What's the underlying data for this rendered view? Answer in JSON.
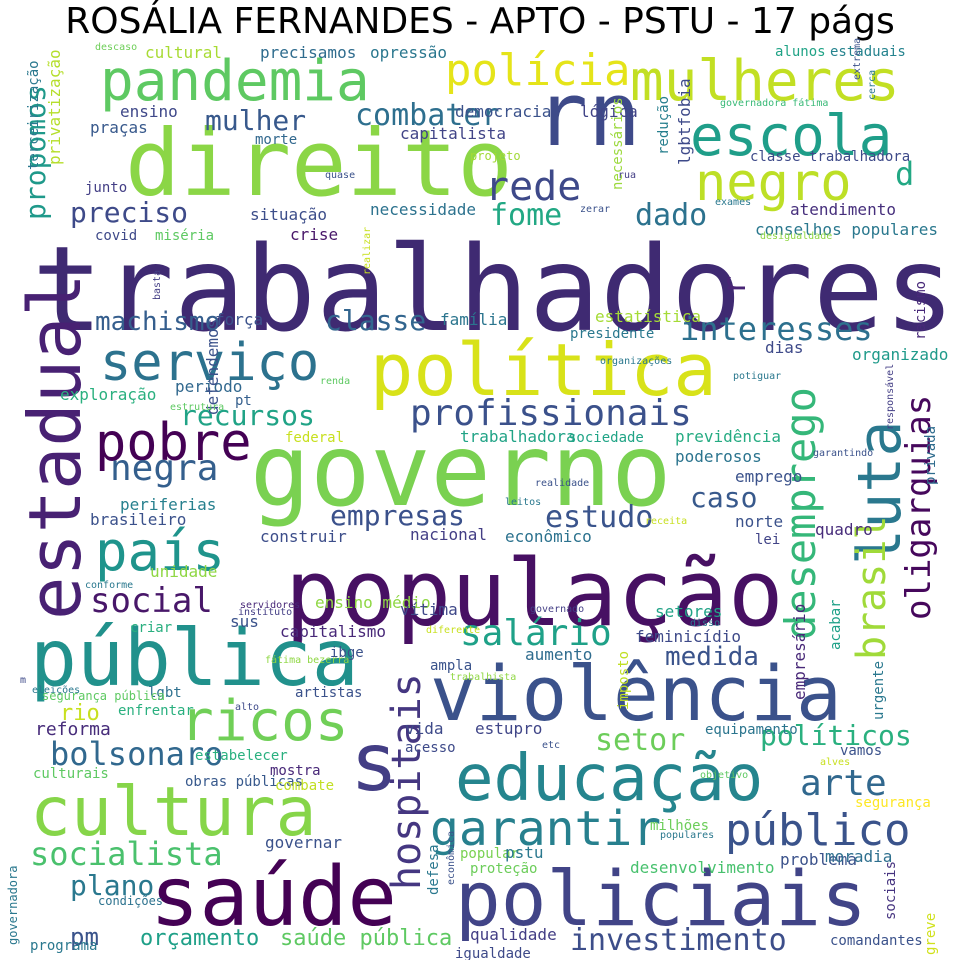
{
  "title": "ROSÁLIA FERNANDES - APTO - PSTU - 17 págs",
  "palette": {
    "dark_purple": "#440154",
    "indigo": "#3b528b",
    "teal": "#21918c",
    "green": "#5ec962",
    "yellow": "#d8e219"
  },
  "words": [
    {
      "text": "trabalhadores",
      "color": "#3f2a72"
    },
    {
      "text": "população",
      "color": "#471063"
    },
    {
      "text": "governo",
      "color": "#7ad151"
    },
    {
      "text": "direito",
      "color": "#8bd646"
    },
    {
      "text": "violência",
      "color": "#3b528b"
    },
    {
      "text": "política",
      "color": "#d8e219"
    },
    {
      "text": "pública",
      "color": "#21918c"
    },
    {
      "text": "saúde",
      "color": "#440154"
    },
    {
      "text": "policiais",
      "color": "#414487"
    },
    {
      "text": "educação",
      "color": "#25858e"
    },
    {
      "text": "cultura",
      "color": "#86d549"
    },
    {
      "text": "estadual",
      "color": "#482173"
    },
    {
      "text": "pandemia",
      "color": "#5ec962"
    },
    {
      "text": "mulheres",
      "color": "#c2df23"
    },
    {
      "text": "rn",
      "color": "#3e4a89"
    },
    {
      "text": "escola",
      "color": "#1f9e89"
    },
    {
      "text": "negro",
      "color": "#bddf26"
    },
    {
      "text": "luta",
      "color": "#2a788e"
    },
    {
      "text": "serviço",
      "color": "#2c728e"
    },
    {
      "text": "pobre",
      "color": "#440154"
    },
    {
      "text": "país",
      "color": "#1f948c"
    },
    {
      "text": "ricos",
      "color": "#70cf57"
    },
    {
      "text": "polícia",
      "color": "#e5e419"
    },
    {
      "text": "rede",
      "color": "#3e4989"
    },
    {
      "text": "s",
      "color": "#433e85"
    },
    {
      "text": "garantir",
      "color": "#27808e"
    },
    {
      "text": "público",
      "color": "#3a538b"
    },
    {
      "text": "profissionais",
      "color": "#3b518b"
    },
    {
      "text": "desemprego",
      "color": "#35b779"
    },
    {
      "text": "brasil",
      "color": "#a0da39"
    },
    {
      "text": "oligarquias",
      "color": "#46085c"
    },
    {
      "text": "hospitais",
      "color": "#453781"
    },
    {
      "text": "negra",
      "color": "#345f8d"
    },
    {
      "text": "social",
      "color": "#481769"
    },
    {
      "text": "interesses",
      "color": "#2d708e"
    },
    {
      "text": "arte",
      "color": "#31688e"
    },
    {
      "text": "socialista",
      "color": "#4ac16d"
    },
    {
      "text": "salário",
      "color": "#1fa188"
    },
    {
      "text": "bolsonaro",
      "color": "#31688e"
    },
    {
      "text": "combater",
      "color": "#2e6f8e"
    },
    {
      "text": "fome",
      "color": "#22a884"
    },
    {
      "text": "dado",
      "color": "#2c728e"
    },
    {
      "text": "mulher",
      "color": "#38598c"
    },
    {
      "text": "machismo",
      "color": "#355e8d"
    },
    {
      "text": "classe",
      "color": "#32658e"
    },
    {
      "text": "recursos",
      "color": "#20a386"
    },
    {
      "text": "empresas",
      "color": "#3b518b"
    },
    {
      "text": "estudo",
      "color": "#3a548c"
    },
    {
      "text": "caso",
      "color": "#38598c"
    },
    {
      "text": "medida",
      "color": "#3a538b"
    },
    {
      "text": "políticos",
      "color": "#2ab07f"
    },
    {
      "text": "setor",
      "color": "#6ccd5a"
    },
    {
      "text": "preciso",
      "color": "#3e4a89"
    },
    {
      "text": "d",
      "color": "#22a884"
    },
    {
      "text": "r",
      "color": "#482475"
    },
    {
      "text": "propomos",
      "color": "#1f998a"
    },
    {
      "text": "plano",
      "color": "#2a788e"
    },
    {
      "text": "pm",
      "color": "#3a538b"
    },
    {
      "text": "orçamento",
      "color": "#1fa088"
    },
    {
      "text": "investimento",
      "color": "#3d4e8a"
    },
    {
      "text": "saúde pública",
      "color": "#5ec962"
    },
    {
      "text": "rio",
      "color": "#c8e020"
    },
    {
      "text": "reforma",
      "color": "#472c7a"
    },
    {
      "text": "democracia",
      "color": "#3b528b"
    },
    {
      "text": "lógica",
      "color": "#414487"
    },
    {
      "text": "capitalista",
      "color": "#414487"
    },
    {
      "text": "cultural",
      "color": "#a8db34"
    },
    {
      "text": "precisamos",
      "color": "#2f6c8e"
    },
    {
      "text": "opressão",
      "color": "#2a778e"
    },
    {
      "text": "alunos",
      "color": "#20a386"
    },
    {
      "text": "estaduais",
      "color": "#25838e"
    },
    {
      "text": "descaso",
      "color": "#6ece58"
    },
    {
      "text": "ensino",
      "color": "#3f4889"
    },
    {
      "text": "praças",
      "color": "#38598c"
    },
    {
      "text": "morte",
      "color": "#31688e"
    },
    {
      "text": "terceirização",
      "color": "#2a788e"
    },
    {
      "text": "privatização",
      "color": "#b5de2b"
    },
    {
      "text": "junto",
      "color": "#433e85"
    },
    {
      "text": "covid",
      "color": "#3e4989"
    },
    {
      "text": "miséria",
      "color": "#5ec962"
    },
    {
      "text": "situação",
      "color": "#3d4e8a"
    },
    {
      "text": "crise",
      "color": "#481769"
    },
    {
      "text": "necessidade",
      "color": "#2c728e"
    },
    {
      "text": "necessários",
      "color": "#9bd93c"
    },
    {
      "text": "redução",
      "color": "#277f8e"
    },
    {
      "text": "lgbtfobia",
      "color": "#3e4a89"
    },
    {
      "text": "projeto",
      "color": "#a2da37"
    },
    {
      "text": "classe trabalhadora",
      "color": "#3e4a89"
    },
    {
      "text": "governadora fátima",
      "color": "#38b977"
    },
    {
      "text": "atendimento",
      "color": "#462f7c"
    },
    {
      "text": "conselhos populares",
      "color": "#2a788e"
    },
    {
      "text": "força",
      "color": "#3b528b"
    },
    {
      "text": "família",
      "color": "#2b758e"
    },
    {
      "text": "estatística",
      "color": "#a5db36"
    },
    {
      "text": "presidente",
      "color": "#2a788e"
    },
    {
      "text": "dias",
      "color": "#3e4a89"
    },
    {
      "text": "organizado",
      "color": "#1f9a8a"
    },
    {
      "text": "racismo",
      "color": "#482979"
    },
    {
      "text": "exploração",
      "color": "#2ab07f"
    },
    {
      "text": "período",
      "color": "#31688e"
    },
    {
      "text": "defendemos",
      "color": "#3b528b"
    },
    {
      "text": "pt",
      "color": "#355f8d"
    },
    {
      "text": "federal",
      "color": "#c8e020"
    },
    {
      "text": "trabalhadora",
      "color": "#20a386"
    },
    {
      "text": "sociedade",
      "color": "#20a486"
    },
    {
      "text": "previdência",
      "color": "#25ab82"
    },
    {
      "text": "poderosos",
      "color": "#2b748e"
    },
    {
      "text": "emprego",
      "color": "#3b528b"
    },
    {
      "text": "privada",
      "color": "#2f6c8e"
    },
    {
      "text": "periferias",
      "color": "#27808e"
    },
    {
      "text": "brasileiro",
      "color": "#3b518b"
    },
    {
      "text": "nacional",
      "color": "#433e85"
    },
    {
      "text": "econômico",
      "color": "#2c728e"
    },
    {
      "text": "construir",
      "color": "#3d4e8a"
    },
    {
      "text": "norte",
      "color": "#3b528b"
    },
    {
      "text": "lei",
      "color": "#414487"
    },
    {
      "text": "quadro",
      "color": "#472c7a"
    },
    {
      "text": "unidade",
      "color": "#8fd744"
    },
    {
      "text": "ensino médio",
      "color": "#8fd744"
    },
    {
      "text": "vítima",
      "color": "#3f4889"
    },
    {
      "text": "setores",
      "color": "#20a386"
    },
    {
      "text": "empresário",
      "color": "#482878"
    },
    {
      "text": "acabar",
      "color": "#1fa188"
    },
    {
      "text": "capitalismo",
      "color": "#482878"
    },
    {
      "text": "feminicídio",
      "color": "#3e4a89"
    },
    {
      "text": "criar",
      "color": "#29af7f"
    },
    {
      "text": "sus",
      "color": "#3b528b"
    },
    {
      "text": "ibge",
      "color": "#3b528b"
    },
    {
      "text": "ampla",
      "color": "#3a538b"
    },
    {
      "text": "aumento",
      "color": "#2f6c8e"
    },
    {
      "text": "imposto",
      "color": "#c0df25"
    },
    {
      "text": "urgente",
      "color": "#2a788e"
    },
    {
      "text": "lgbt",
      "color": "#2d708e"
    },
    {
      "text": "artistas",
      "color": "#3b528b"
    },
    {
      "text": "enfrentar",
      "color": "#2ab07f"
    },
    {
      "text": "vida",
      "color": "#3e4a89"
    },
    {
      "text": "estupro",
      "color": "#404688"
    },
    {
      "text": "equipamento",
      "color": "#2b758e"
    },
    {
      "text": "acesso",
      "color": "#3e4a89"
    },
    {
      "text": "vamos",
      "color": "#3b528b"
    },
    {
      "text": "estabelecer",
      "color": "#2ab07f"
    },
    {
      "text": "obras públicas",
      "color": "#38598c"
    },
    {
      "text": "mostra",
      "color": "#482878"
    },
    {
      "text": "combate",
      "color": "#c2df23"
    },
    {
      "text": "culturais",
      "color": "#5ec962"
    },
    {
      "text": "segurança",
      "color": "#fde725"
    },
    {
      "text": "milhões",
      "color": "#6ccd5a"
    },
    {
      "text": "governar",
      "color": "#3b528b"
    },
    {
      "text": "popular",
      "color": "#79d151"
    },
    {
      "text": "pstu",
      "color": "#2a788e"
    },
    {
      "text": "desenvolvimento",
      "color": "#48c16e"
    },
    {
      "text": "problema",
      "color": "#3b528b"
    },
    {
      "text": "moradia",
      "color": "#2e6f8e"
    },
    {
      "text": "proteção",
      "color": "#6ccd5a"
    },
    {
      "text": "qualidade",
      "color": "#433e85"
    },
    {
      "text": "igualdade",
      "color": "#3e4a89"
    },
    {
      "text": "comandantes",
      "color": "#3b528b"
    },
    {
      "text": "programa",
      "color": "#2a788e"
    },
    {
      "text": "governadora",
      "color": "#2a788e"
    },
    {
      "text": "condições",
      "color": "#2c728e"
    },
    {
      "text": "defesa",
      "color": "#2a788e"
    },
    {
      "text": "sociais",
      "color": "#463480"
    },
    {
      "text": "greve",
      "color": "#d0e11c"
    },
    {
      "text": "segurança pública",
      "color": "#5ec962"
    },
    {
      "text": "m",
      "color": "#3e4a89"
    },
    {
      "text": "eleições",
      "color": "#2a788e"
    },
    {
      "text": "conforme",
      "color": "#2a788e"
    },
    {
      "text": "servidores",
      "color": "#482878"
    },
    {
      "text": "instituto",
      "color": "#433e85"
    },
    {
      "text": "diferente",
      "color": "#c8e020"
    },
    {
      "text": "disso",
      "color": "#2a788e"
    },
    {
      "text": "governado",
      "color": "#433e85"
    },
    {
      "text": "trabalhista",
      "color": "#90d743"
    },
    {
      "text": "fátima bezerra",
      "color": "#8fd744"
    },
    {
      "text": "alto",
      "color": "#3e4a89"
    },
    {
      "text": "etc",
      "color": "#3b528b"
    },
    {
      "text": "objetivo",
      "color": "#5ec962"
    },
    {
      "text": "alves",
      "color": "#c8e020"
    },
    {
      "text": "populares",
      "color": "#2a788e"
    },
    {
      "text": "econômica",
      "color": "#3b528b"
    },
    {
      "text": "realidade",
      "color": "#3b528b"
    },
    {
      "text": "leitos",
      "color": "#2a788e"
    },
    {
      "text": "receita",
      "color": "#c8e020"
    },
    {
      "text": "garantindo",
      "color": "#3b528b"
    },
    {
      "text": "responsável",
      "color": "#433e85"
    },
    {
      "text": "organizações",
      "color": "#2a788e"
    },
    {
      "text": "renda",
      "color": "#5ec962"
    },
    {
      "text": "estrutura",
      "color": "#5ec962"
    },
    {
      "text": "potiguar",
      "color": "#2a788e"
    },
    {
      "text": "zerar",
      "color": "#3b528b"
    },
    {
      "text": "realizar",
      "color": "#c8e020"
    },
    {
      "text": "desigualdade",
      "color": "#8fd744"
    },
    {
      "text": "exames",
      "color": "#2a788e"
    },
    {
      "text": "quase",
      "color": "#3b528b"
    },
    {
      "text": "rua",
      "color": "#433e85"
    },
    {
      "text": "cerca",
      "color": "#2a788e"
    },
    {
      "text": "extrema",
      "color": "#3b528b"
    },
    {
      "text": "basta",
      "color": "#433e85"
    },
    {
      "text": "trabalhador",
      "color": "#2a788e"
    }
  ]
}
